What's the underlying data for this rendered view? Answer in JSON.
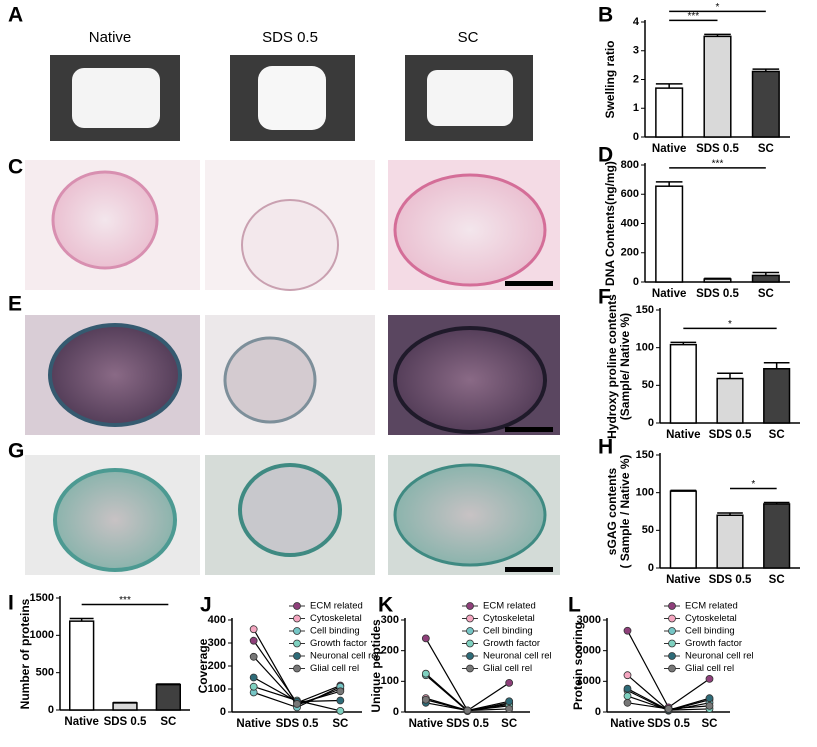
{
  "images": [
    {
      "label": "A",
      "captions": [
        "Native",
        "SDS 0.5",
        "SC"
      ]
    },
    {
      "label": "C"
    },
    {
      "label": "E"
    },
    {
      "label": "G"
    }
  ],
  "chart_data": [
    {
      "type": "bar",
      "panel_label": "B",
      "ylabel": "Swelling ratio",
      "categories": [
        "Native",
        "SDS 0.5",
        "SC"
      ],
      "values": [
        1.7,
        3.5,
        2.28
      ],
      "errors": [
        0.15,
        0.07,
        0.08
      ],
      "colors": [
        "#ffffff",
        "#d9d9d9",
        "#404040"
      ],
      "ylim": [
        0,
        4
      ],
      "yticks": [
        0,
        1,
        2,
        3,
        4
      ],
      "significance": [
        {
          "pair": [
            "Native",
            "SDS 0.5"
          ],
          "label": "***"
        },
        {
          "pair": [
            "Native",
            "SC"
          ],
          "label": "*"
        }
      ]
    },
    {
      "type": "bar",
      "panel_label": "D",
      "ylabel": "DNA Contents(ng/mg)",
      "categories": [
        "Native",
        "SDS 0.5",
        "SC"
      ],
      "values": [
        655,
        20,
        45
      ],
      "errors": [
        30,
        5,
        20
      ],
      "colors": [
        "#ffffff",
        "#d9d9d9",
        "#404040"
      ],
      "ylim": [
        0,
        800
      ],
      "yticks": [
        0,
        200,
        400,
        600,
        800
      ],
      "significance": [
        {
          "pair": [
            "Native",
            "SC"
          ],
          "label": "***"
        }
      ]
    },
    {
      "type": "bar",
      "panel_label": "F",
      "ylabel": [
        "Hydroxy proline contents",
        "(Sample/ Native %)"
      ],
      "categories": [
        "Native",
        "SDS 0.5",
        "SC"
      ],
      "values": [
        104,
        59,
        72
      ],
      "errors": [
        3,
        7,
        8
      ],
      "colors": [
        "#ffffff",
        "#d9d9d9",
        "#404040"
      ],
      "ylim": [
        0,
        150
      ],
      "yticks": [
        0,
        50,
        100,
        150
      ],
      "significance": [
        {
          "pair": [
            "Native",
            "SC"
          ],
          "label": "*"
        }
      ]
    },
    {
      "type": "bar",
      "panel_label": "H",
      "ylabel": [
        "sGAG contents",
        "( Sample / Native %)"
      ],
      "categories": [
        "Native",
        "SDS 0.5",
        "SC"
      ],
      "values": [
        102,
        70,
        85
      ],
      "errors": [
        1,
        3,
        2
      ],
      "colors": [
        "#ffffff",
        "#d9d9d9",
        "#404040"
      ],
      "ylim": [
        0,
        150
      ],
      "yticks": [
        0,
        50,
        100,
        150
      ],
      "significance": [
        {
          "pair": [
            "SDS 0.5",
            "SC"
          ],
          "label": "*"
        }
      ]
    },
    {
      "type": "bar",
      "panel_label": "I",
      "ylabel": "Number of proteins",
      "categories": [
        "Native",
        "SDS 0.5",
        "SC"
      ],
      "values": [
        1190,
        95,
        340
      ],
      "errors": [
        35,
        5,
        8
      ],
      "colors": [
        "#ffffff",
        "#d9d9d9",
        "#404040"
      ],
      "ylim": [
        0,
        1500
      ],
      "yticks": [
        0,
        500,
        1000,
        1500
      ],
      "significance": [
        {
          "pair": [
            "Native",
            "SC"
          ],
          "label": "***"
        }
      ]
    },
    {
      "type": "line",
      "panel_label": "J",
      "ylabel": "Coverage",
      "categories": [
        "Native",
        "SDS 0.5",
        "SC"
      ],
      "ylim": [
        0,
        400
      ],
      "yticks": [
        0,
        100,
        200,
        300,
        400
      ],
      "series": [
        {
          "name": "ECM related",
          "color": "#8e3f7a",
          "values": [
            310,
            40,
            115
          ]
        },
        {
          "name": "Cytoskeletal",
          "color": "#f4a6c0",
          "values": [
            360,
            30,
            100
          ]
        },
        {
          "name": "Cell binding",
          "color": "#76c6c6",
          "values": [
            85,
            20,
            110
          ]
        },
        {
          "name": "Growth factor",
          "color": "#7fd1c0",
          "values": [
            110,
            50,
            5
          ]
        },
        {
          "name": "Neuronal cell rel",
          "color": "#2e6b78",
          "values": [
            150,
            45,
            50
          ]
        },
        {
          "name": "Glial cell rel",
          "color": "#777777",
          "values": [
            240,
            35,
            90
          ]
        }
      ]
    },
    {
      "type": "line",
      "panel_label": "K",
      "ylabel": "Unique peptides",
      "categories": [
        "Native",
        "SDS 0.5",
        "SC"
      ],
      "ylim": [
        0,
        300
      ],
      "yticks": [
        0,
        100,
        200,
        300
      ],
      "series": [
        {
          "name": "ECM related",
          "color": "#8e3f7a",
          "values": [
            240,
            5,
            95
          ]
        },
        {
          "name": "Cytoskeletal",
          "color": "#f4a6c0",
          "values": [
            45,
            5,
            25
          ]
        },
        {
          "name": "Cell binding",
          "color": "#76c6c6",
          "values": [
            120,
            3,
            30
          ]
        },
        {
          "name": "Growth factor",
          "color": "#7fd1c0",
          "values": [
            125,
            5,
            20
          ]
        },
        {
          "name": "Neuronal cell rel",
          "color": "#2e6b78",
          "values": [
            30,
            5,
            35
          ]
        },
        {
          "name": "Glial cell rel",
          "color": "#777777",
          "values": [
            40,
            5,
            10
          ]
        }
      ]
    },
    {
      "type": "line",
      "panel_label": "L",
      "ylabel": "Protein scoring",
      "categories": [
        "Native",
        "SDS 0.5",
        "SC"
      ],
      "ylim": [
        0,
        3000
      ],
      "yticks": [
        0,
        1000,
        2000,
        3000
      ],
      "series": [
        {
          "name": "ECM related",
          "color": "#8e3f7a",
          "values": [
            2650,
            150,
            1080
          ]
        },
        {
          "name": "Cytoskeletal",
          "color": "#f4a6c0",
          "values": [
            1200,
            50,
            400
          ]
        },
        {
          "name": "Cell binding",
          "color": "#76c6c6",
          "values": [
            700,
            40,
            300
          ]
        },
        {
          "name": "Growth factor",
          "color": "#7fd1c0",
          "values": [
            520,
            60,
            100
          ]
        },
        {
          "name": "Neuronal cell rel",
          "color": "#2e6b78",
          "values": [
            760,
            60,
            450
          ]
        },
        {
          "name": "Glial cell rel",
          "color": "#777777",
          "values": [
            300,
            100,
            200
          ]
        }
      ]
    }
  ]
}
